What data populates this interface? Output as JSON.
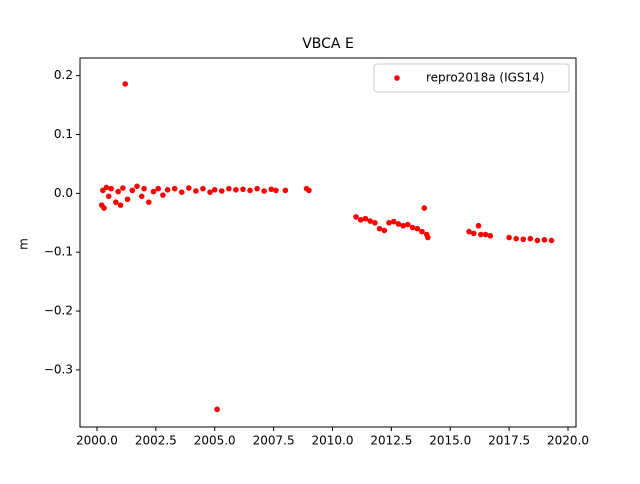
{
  "chart_data": {
    "type": "scatter",
    "title": "VBCA E",
    "y_label": "m",
    "legend_position": "upper right",
    "series": [
      {
        "name": "repro2018a (IGS14)",
        "color": "#ff0000",
        "x": [
          2000.2,
          2000.25,
          2000.3,
          2000.4,
          2000.5,
          2000.6,
          2000.8,
          2000.9,
          2001.0,
          2001.1,
          2001.2,
          2001.3,
          2001.5,
          2001.7,
          2001.9,
          2002.0,
          2002.2,
          2002.4,
          2002.6,
          2002.8,
          2003.0,
          2003.3,
          2003.6,
          2003.9,
          2004.2,
          2004.5,
          2004.8,
          2005.0,
          2005.1,
          2005.3,
          2005.6,
          2005.9,
          2006.2,
          2006.5,
          2006.8,
          2007.1,
          2007.4,
          2007.6,
          2008.0,
          2008.9,
          2009.0,
          2011.0,
          2011.2,
          2011.4,
          2011.6,
          2011.8,
          2012.0,
          2012.2,
          2012.4,
          2012.6,
          2012.8,
          2013.0,
          2013.2,
          2013.4,
          2013.6,
          2013.8,
          2013.9,
          2014.0,
          2014.05,
          2015.8,
          2016.0,
          2016.2,
          2016.3,
          2016.5,
          2016.7,
          2017.5,
          2017.8,
          2018.1,
          2018.4,
          2018.7,
          2019.0,
          2019.3
        ],
        "values": [
          -0.02,
          0.005,
          -0.025,
          0.01,
          -0.005,
          0.008,
          -0.015,
          0.003,
          -0.02,
          0.009,
          0.186,
          -0.01,
          0.005,
          0.012,
          -0.005,
          0.008,
          -0.015,
          0.003,
          0.008,
          -0.003,
          0.006,
          0.008,
          0.002,
          0.009,
          0.004,
          0.008,
          0.002,
          0.006,
          -0.367,
          0.004,
          0.008,
          0.006,
          0.007,
          0.005,
          0.008,
          0.004,
          0.007,
          0.005,
          0.005,
          0.008,
          0.005,
          -0.04,
          -0.045,
          -0.043,
          -0.047,
          -0.05,
          -0.06,
          -0.063,
          -0.05,
          -0.048,
          -0.052,
          -0.055,
          -0.053,
          -0.058,
          -0.06,
          -0.065,
          -0.025,
          -0.07,
          -0.075,
          -0.065,
          -0.068,
          -0.055,
          -0.07,
          -0.07,
          -0.072,
          -0.075,
          -0.077,
          -0.078,
          -0.077,
          -0.08,
          -0.079,
          -0.08
        ]
      }
    ],
    "xlim": [
      1999.28,
      2020.34
    ],
    "xticks": [
      {
        "value": 2000,
        "label": "2000.0"
      },
      2002.5,
      {
        "value": 2005,
        "label": "2005.0"
      },
      2007.5,
      {
        "value": 2010,
        "label": "2010.0"
      },
      2012.5,
      {
        "value": 2015,
        "label": "2015.0"
      },
      2017.5,
      {
        "value": 2020,
        "label": "2020.0"
      }
    ],
    "ylim": [
      -0.397,
      0.23
    ],
    "yticks": [
      {
        "value": -0.3,
        "label": "−0.3"
      },
      {
        "value": -0.2,
        "label": "−0.2"
      },
      {
        "value": -0.1,
        "label": "−0.1"
      },
      {
        "value": 0,
        "label": "0.0"
      },
      0.1,
      0.2
    ]
  }
}
